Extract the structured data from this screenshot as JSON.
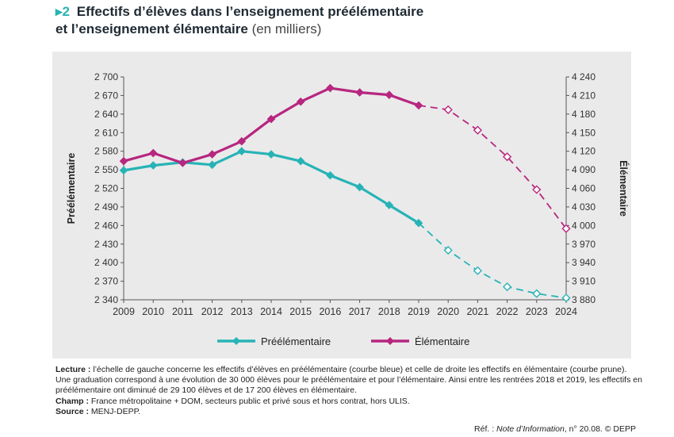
{
  "title": {
    "number": "2",
    "line1": "Effectifs d’élèves dans l’enseignement préélémentaire",
    "line2": "et l’enseignement élémentaire",
    "unit": "(en milliers)"
  },
  "colors": {
    "preelementaire": "#27b3b6",
    "elementaire": "#b7267f",
    "background": "#eaeaea",
    "accent": "#2ab3b3"
  },
  "chart_data": {
    "type": "line",
    "x": [
      2009,
      2010,
      2011,
      2012,
      2013,
      2014,
      2015,
      2016,
      2017,
      2018,
      2019,
      2020,
      2021,
      2022,
      2023,
      2024
    ],
    "series": [
      {
        "name": "Préélémentaire",
        "axis": "left",
        "values": [
          2549,
          2557,
          2562,
          2558,
          2580,
          2575,
          2564,
          2541,
          2522,
          2493,
          2464,
          2420,
          2387,
          2361,
          2350,
          2343
        ],
        "observed_until": 2019,
        "projected_from": 2019
      },
      {
        "name": "Élémentaire",
        "axis": "right",
        "values": [
          4104,
          4117,
          4101,
          4115,
          4136,
          4172,
          4200,
          4222,
          4215,
          4211,
          4194,
          4187,
          4154,
          4111,
          4058,
          3995
        ],
        "observed_until": 2019,
        "projected_from": 2019
      }
    ],
    "xlabel": "",
    "ylabel_left": "Préélémentaire",
    "ylabel_right": "Élémentaire",
    "ylim_left": [
      2340,
      2700
    ],
    "ylim_right": [
      3880,
      4240
    ],
    "yticks_left": [
      "2 700",
      "2 670",
      "2 640",
      "2 610",
      "2 580",
      "2 550",
      "2 520",
      "2 490",
      "2 460",
      "2 430",
      "2 400",
      "2 370",
      "2 340"
    ],
    "yticks_right": [
      "4 240",
      "4 210",
      "4 180",
      "4 150",
      "4 120",
      "4 090",
      "4 060",
      "4 030",
      "4 000",
      "3 970",
      "3 940",
      "3 910",
      "3 880"
    ],
    "xticks": [
      "2009",
      "2010",
      "2011",
      "2012",
      "2013",
      "2014",
      "2015",
      "2016",
      "2017",
      "2018",
      "2019",
      "2020",
      "2021",
      "2022",
      "2023",
      "2024"
    ],
    "grid": false,
    "legend_position": "bottom-center"
  },
  "notes": {
    "lecture_label": "Lecture :",
    "lecture_text": " l’échelle de gauche concerne les effectifs d’élèves en préélémentaire (courbe bleue) et celle de droite les effectifs en élémentaire (courbe prune). Une graduation correspond à une évolution de 30 000 élèves pour le préélémentaire et pour l’élémentaire. Ainsi entre les rentrées 2018 et 2019, les effectifs en préélémentaire ont diminué de 29 100 élèves et de 17 200 élèves en élémentaire.",
    "champ_label": "Champ :",
    "champ_text": " France métropolitaine + DOM, secteurs public et privé sous et hors contrat, hors ULIS.",
    "source_label": "Source :",
    "source_text": " MENJ-DEPP."
  },
  "reference": {
    "prefix": "Réf. : ",
    "publication": "Note d’Information",
    "suffix": ", n° 20.08. © DEPP"
  }
}
